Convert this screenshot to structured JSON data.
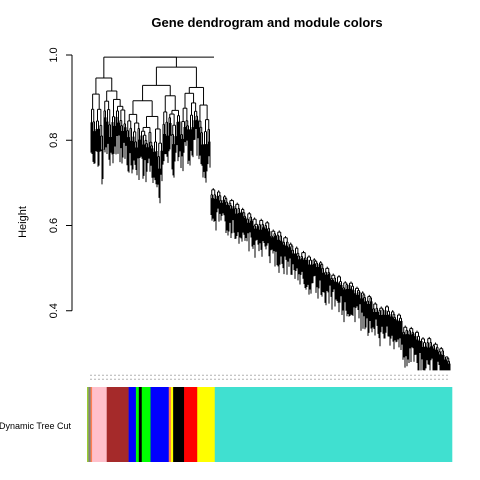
{
  "chart_data": {
    "type": "dendrogram",
    "title": "Gene dendrogram and module colors",
    "ylabel": "Height",
    "xlabel": "",
    "ylim": [
      0.2,
      1.0
    ],
    "yticks": [
      0.4,
      0.6,
      0.8,
      1.0
    ],
    "color_row_label": "Dynamic Tree Cut",
    "color_bar_segments": [
      {
        "color": "#9acd32",
        "width": 0.004
      },
      {
        "color": "#808080",
        "width": 0.006
      },
      {
        "color": "#ff7f50",
        "width": 0.004
      },
      {
        "color": "#ffc0cb",
        "width": 0.04
      },
      {
        "color": "#a52a2a",
        "width": 0.06
      },
      {
        "color": "#0000ff",
        "width": 0.02
      },
      {
        "color": "#00ff00",
        "width": 0.008
      },
      {
        "color": "#000000",
        "width": 0.008
      },
      {
        "color": "#00ff00",
        "width": 0.024
      },
      {
        "color": "#0000ff",
        "width": 0.05
      },
      {
        "color": "#ff7f50",
        "width": 0.006
      },
      {
        "color": "#ffff00",
        "width": 0.006
      },
      {
        "color": "#000000",
        "width": 0.03
      },
      {
        "color": "#ff0000",
        "width": 0.036
      },
      {
        "color": "#ffff00",
        "width": 0.048
      },
      {
        "color": "#40e0d0",
        "width": 0.65
      }
    ]
  }
}
